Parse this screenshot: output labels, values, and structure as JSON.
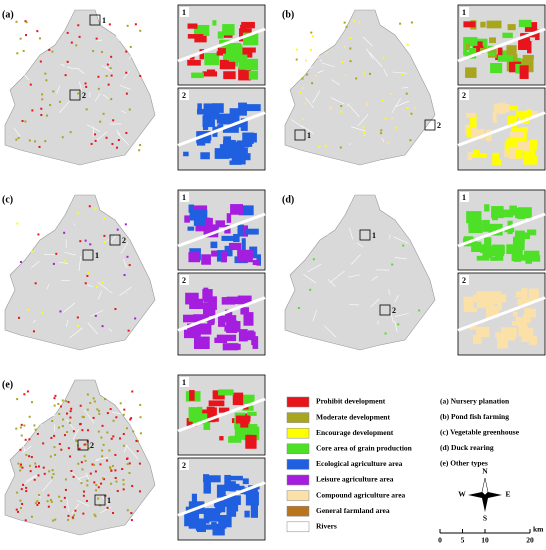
{
  "panels": [
    {
      "label": "(a)",
      "marker_labels": [
        "1",
        "2"
      ],
      "inset_labels": [
        "1",
        "2"
      ]
    },
    {
      "label": "(b)",
      "marker_labels": [
        "1",
        "2"
      ],
      "inset_labels": [
        "1",
        "2"
      ]
    },
    {
      "label": "(c)",
      "marker_labels": [
        "1",
        "2"
      ],
      "inset_labels": [
        "1",
        "2"
      ]
    },
    {
      "label": "(d)",
      "marker_labels": [
        "1",
        "2"
      ],
      "inset_labels": [
        "1",
        "2"
      ]
    },
    {
      "label": "(e)",
      "marker_labels": [
        "1",
        "2"
      ],
      "inset_labels": [
        "1",
        "2"
      ]
    }
  ],
  "legend": [
    {
      "label": "Prohibit development",
      "color": "#e8141c"
    },
    {
      "label": "Moderate development",
      "color": "#a8a61e"
    },
    {
      "label": "Encourage development",
      "color": "#ffff00"
    },
    {
      "label": "Core area of grain production",
      "color": "#4de026"
    },
    {
      "label": "Ecological agriculture area",
      "color": "#1f5fe0"
    },
    {
      "label": "Leisure agriculture area",
      "color": "#a51ee0"
    },
    {
      "label": "Compound agriculture area",
      "color": "#fbe0a8"
    },
    {
      "label": "General farmland area",
      "color": "#b8751e"
    },
    {
      "label": "Rivers",
      "color": "#ffffff"
    }
  ],
  "types": [
    "(a) Nursery planation",
    "(b) Pond fish farming",
    "(c) Vegetable greenhouse",
    "(d) Duck rearing",
    "(e) Other types"
  ],
  "compass": {
    "n": "N",
    "s": "S",
    "e": "E",
    "w": "W"
  },
  "scale_bar": {
    "ticks": [
      0,
      5,
      10,
      20
    ],
    "unit": "km"
  }
}
